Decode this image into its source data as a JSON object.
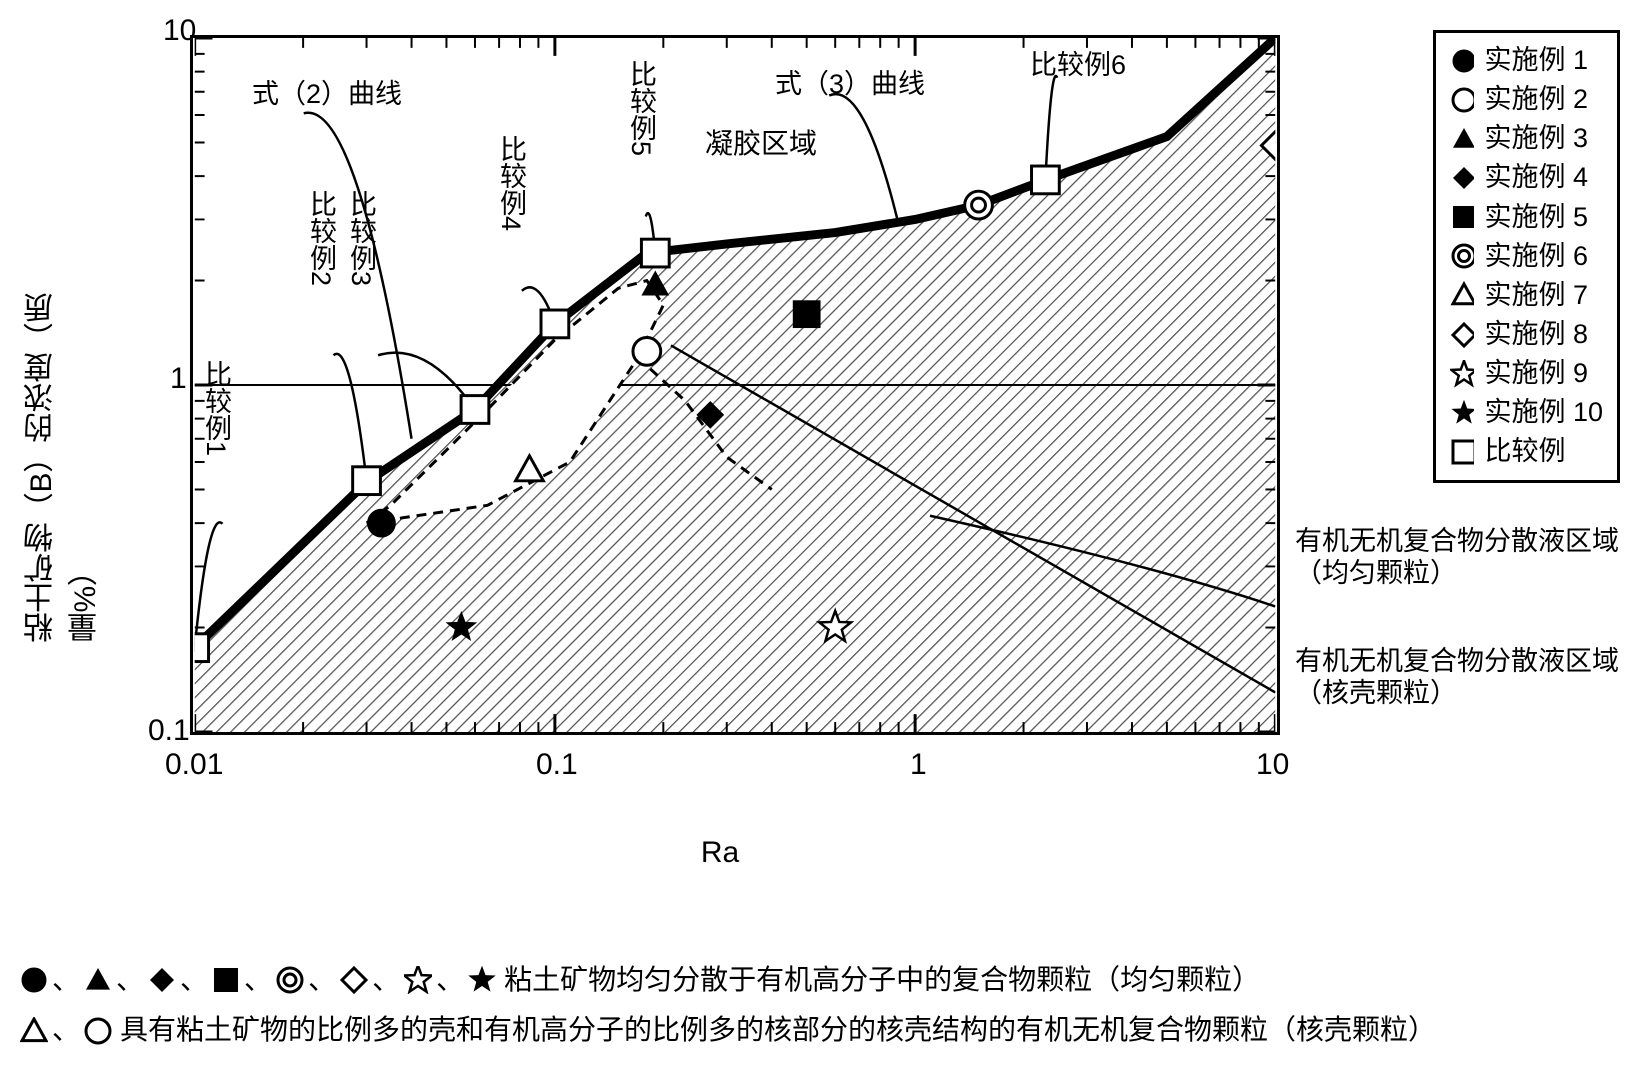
{
  "chart": {
    "type": "scatter-log-log",
    "xlabel": "Ra",
    "ylabel": "粘土矿物（B）的浓度（质量%）",
    "xlim": [
      0.01,
      10
    ],
    "ylim": [
      0.1,
      10
    ],
    "xticks": [
      0.01,
      0.1,
      1,
      10
    ],
    "yticks": [
      0.1,
      1,
      10
    ],
    "background_color": "#ffffff",
    "grid_color": "#000000",
    "border_width": 3,
    "hatch_color": "#404040",
    "hatch_spacing": 8,
    "curve2_points": [
      [
        0.01,
        0.175
      ],
      [
        0.03,
        0.525
      ],
      [
        0.06,
        0.85
      ],
      [
        0.1,
        1.5
      ],
      [
        0.18,
        2.4
      ]
    ],
    "curve3_points": [
      [
        0.18,
        2.4
      ],
      [
        0.3,
        2.55
      ],
      [
        0.6,
        2.75
      ],
      [
        1.0,
        3.0
      ],
      [
        1.5,
        3.3
      ],
      [
        2.3,
        3.9
      ],
      [
        5.0,
        5.2
      ],
      [
        10,
        10
      ]
    ],
    "dash_region": [
      [
        0.03,
        0.4
      ],
      [
        0.065,
        0.45
      ],
      [
        0.11,
        0.6
      ],
      [
        0.17,
        1.2
      ],
      [
        0.2,
        1.7
      ],
      [
        0.18,
        2.0
      ],
      [
        0.15,
        1.9
      ],
      [
        0.1,
        1.35
      ],
      [
        0.065,
        0.85
      ],
      [
        0.035,
        0.45
      ],
      [
        0.03,
        0.4
      ]
    ],
    "dash_lower": [
      [
        0.17,
        1.2
      ],
      [
        0.23,
        0.9
      ],
      [
        0.3,
        0.62
      ],
      [
        0.4,
        0.5
      ]
    ],
    "series": [
      {
        "label": "实施例 1",
        "marker": "filled-circle",
        "x": 0.033,
        "y": 0.4,
        "color": "#000"
      },
      {
        "label": "实施例 2",
        "marker": "open-circle",
        "x": 0.18,
        "y": 1.25,
        "color": "#000"
      },
      {
        "label": "实施例 3",
        "marker": "filled-triangle",
        "x": 0.19,
        "y": 1.95,
        "color": "#000"
      },
      {
        "label": "实施例 4",
        "marker": "filled-diamond",
        "x": 0.27,
        "y": 0.82,
        "color": "#000"
      },
      {
        "label": "实施例 5",
        "marker": "filled-square",
        "x": 0.5,
        "y": 1.6,
        "color": "#000"
      },
      {
        "label": "实施例 6",
        "marker": "double-circle",
        "x": 1.5,
        "y": 3.3,
        "color": "#000"
      },
      {
        "label": "实施例 7",
        "marker": "open-triangle",
        "x": 0.085,
        "y": 0.57,
        "color": "#000"
      },
      {
        "label": "实施例 8",
        "marker": "open-diamond",
        "x": 10,
        "y": 4.9,
        "color": "#000"
      },
      {
        "label": "实施例 9",
        "marker": "open-star",
        "x": 0.6,
        "y": 0.2,
        "color": "#000"
      },
      {
        "label": "实施例 10",
        "marker": "filled-star",
        "x": 0.055,
        "y": 0.2,
        "color": "#000"
      },
      {
        "label": "比较例",
        "marker": "open-square",
        "color": "#000"
      }
    ],
    "compare_points": [
      {
        "id": 1,
        "x": 0.01,
        "y": 0.175
      },
      {
        "id": 2,
        "x": 0.03,
        "y": 0.53
      },
      {
        "id": 3,
        "x": 0.06,
        "y": 0.85
      },
      {
        "id": 4,
        "x": 0.1,
        "y": 1.5
      },
      {
        "id": 5,
        "x": 0.19,
        "y": 2.4
      },
      {
        "id": 6,
        "x": 2.3,
        "y": 3.9
      }
    ],
    "annotations": {
      "curve2": "式（2）曲线",
      "curve3": "式（3）曲线",
      "gel": "凝胶区域",
      "cmp1": "比较例1",
      "cmp2": "比较例2",
      "cmp3": "比较例3",
      "cmp4": "比较例4",
      "cmp5": "比较例5",
      "cmp6": "比较例6",
      "region_uniform": "有机无机复合物分散液区域（均匀颗粒）",
      "region_coreshell": "有机无机复合物分散液区域（核壳颗粒）"
    }
  },
  "footnotes": {
    "uniform": "粘土矿物均匀分散于有机高分子中的复合物颗粒（均匀颗粒）",
    "coreshell": "具有粘土矿物的比例多的壳和有机高分子的比例多的核部分的核壳结构的有机无机复合物颗粒（核壳颗粒）",
    "uniform_markers": [
      "filled-circle",
      "filled-triangle",
      "filled-diamond",
      "filled-square",
      "double-circle",
      "open-diamond",
      "open-star",
      "filled-star"
    ],
    "coreshell_markers": [
      "open-triangle",
      "open-circle"
    ]
  }
}
